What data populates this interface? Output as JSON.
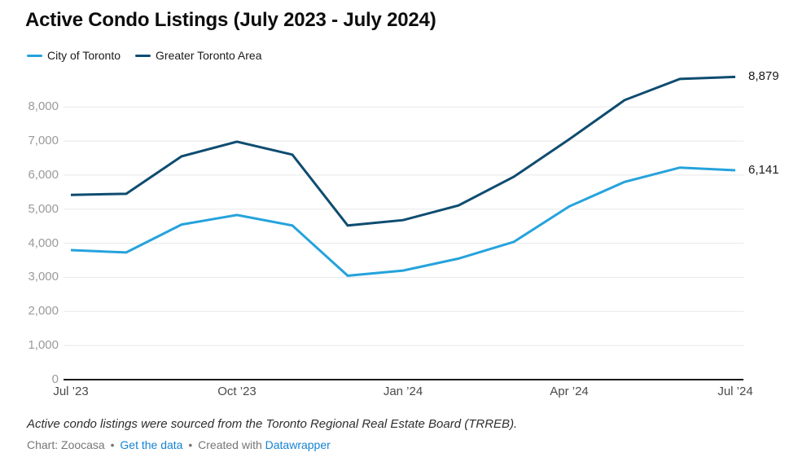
{
  "header": {
    "title": "Active Condo Listings (July 2023 - July 2024)"
  },
  "footer": {
    "note": "Active condo listings were sourced from the Toronto Regional Real Estate Board (TRREB).",
    "source_label": "Chart: Zoocasa",
    "separator": "•",
    "data_link": "Get the data",
    "created_with": "Created with",
    "tool_link": "Datawrapper"
  },
  "colors": {
    "city_line": "#25A3DC",
    "gta_line": "#0E4C70",
    "link": "#1583D3",
    "grid": "#E8E8E8",
    "baseline": "#1A1A1A",
    "y_tick_text": "#9B9B9B",
    "x_tick_text": "#4A4A4A"
  },
  "chart_data": {
    "type": "line",
    "title": "Active Condo Listings (July 2023 - July 2024)",
    "x": [
      "Jul ’23",
      "Aug ’23",
      "Sep ’23",
      "Oct ’23",
      "Nov ’23",
      "Dec ’23",
      "Jan ’24",
      "Feb ’24",
      "Mar ’24",
      "Apr ’24",
      "May ’24",
      "Jun ’24",
      "Jul ’24"
    ],
    "x_tick_positions": [
      0,
      3,
      6,
      9,
      12
    ],
    "x_tick_labels": [
      "Jul ’23",
      "Oct ’23",
      "Jan ’24",
      "Apr ’24",
      "Jul ’24"
    ],
    "y_ticks": [
      0,
      1000,
      2000,
      3000,
      4000,
      5000,
      6000,
      7000,
      8000
    ],
    "ylim": [
      0,
      8985
    ],
    "grid": "horizontal",
    "legend_position": "top-left",
    "series": [
      {
        "name": "City of Toronto",
        "color": "#25A3DC",
        "values": [
          3800,
          3730,
          4550,
          4830,
          4520,
          3050,
          3200,
          3550,
          4040,
          5080,
          5800,
          6220,
          6141
        ],
        "end_label": "6,141"
      },
      {
        "name": "Greater Toronto Area",
        "color": "#0E4C70",
        "values": [
          5420,
          5450,
          6550,
          6980,
          6600,
          4520,
          4680,
          5110,
          5950,
          7050,
          8200,
          8820,
          8879
        ],
        "end_label": "8,879"
      }
    ]
  }
}
